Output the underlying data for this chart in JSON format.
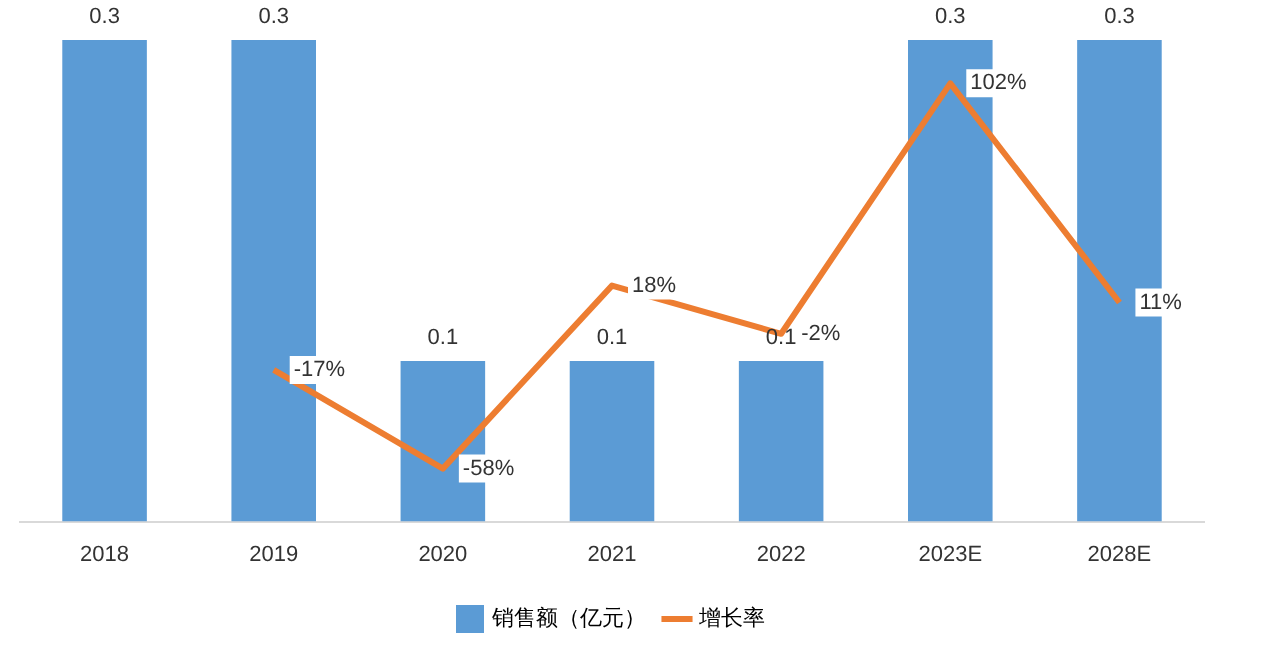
{
  "chart_data": {
    "type": "bar",
    "categories": [
      "2018",
      "2019",
      "2020",
      "2021",
      "2022",
      "2023E",
      "2028E"
    ],
    "series": [
      {
        "name": "销售额（亿元）",
        "color": "#5b9bd5",
        "values": [
          0.3,
          0.3,
          0.1,
          0.1,
          0.1,
          0.3,
          0.3
        ]
      },
      {
        "name": "增长率",
        "type": "line",
        "axis": "y2",
        "color": "#ed7d31",
        "values": [
          null,
          -17,
          -58,
          18,
          -2,
          102,
          11
        ],
        "value_labels": [
          null,
          "-17%",
          "-58%",
          "18%",
          "-2%",
          "102%",
          "11%"
        ]
      }
    ],
    "data_labels": true,
    "legend": "bottom",
    "grid": false,
    "tick_labels": "x",
    "marker": "none"
  }
}
